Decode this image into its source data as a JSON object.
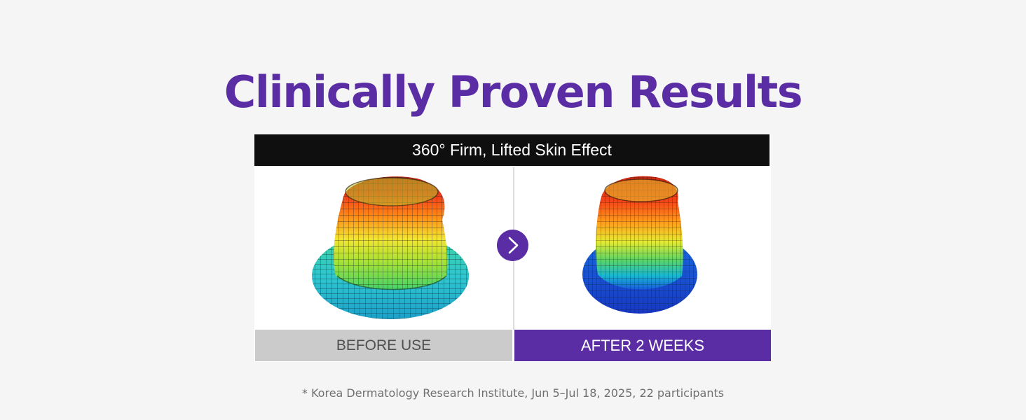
{
  "headline": "Clinically Proven Results",
  "panel": {
    "header": "360° Firm, Lifted Skin Effect",
    "before_label": "BEFORE USE",
    "after_label": "AFTER 2 WEEKS",
    "next_icon": "chevron-right-icon"
  },
  "footnote": "* Korea Dermatology Research Institute, Jun 5–Jul 18, 2025, 22 participants",
  "colors": {
    "accent": "#5b2da5",
    "header_bg": "#0f0f0f",
    "before_label_bg": "#cbcbcb",
    "page_bg": "#f5f5f5"
  }
}
